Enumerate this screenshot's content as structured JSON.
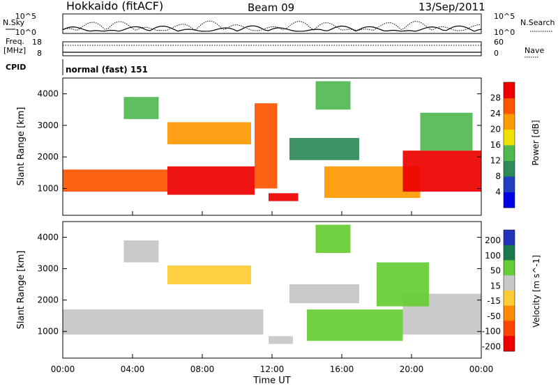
{
  "header": {
    "station": "Hokkaido (fitACF)",
    "beam": "Beam 09",
    "date": "13/Sep/2011"
  },
  "noise_panel": {
    "left_label": "N.Sky",
    "right_label": "N.Search",
    "y_top_label": "10^5",
    "y_bottom_label": "10^0",
    "right_top_label": "10^5",
    "right_bottom_label": "10^0"
  },
  "freq_panel": {
    "left_label_1": "Freq.",
    "left_label_2": "[MHz]",
    "left_ticks": [
      "18",
      "8"
    ],
    "right_ticks": [
      "60",
      "0"
    ],
    "right_label": "Nave"
  },
  "cpid_panel": {
    "label": "CPID",
    "value": "normal (fast) 151"
  },
  "colors": {
    "power_scale": [
      "#0000e6",
      "#1f3fbf",
      "#2e8b57",
      "#4fb84f",
      "#f0e000",
      "#ff9900",
      "#ff5500",
      "#ee0000"
    ],
    "velocity_scale": [
      "#2233bb",
      "#1a7a4a",
      "#66cc33",
      "#c8c8c8",
      "#ffcc33",
      "#ff8800",
      "#ff4400",
      "#ee0000"
    ],
    "ground_scatter": "#c4c4c4"
  },
  "chart_data": [
    {
      "type": "heatmap",
      "title": "Power",
      "ylabel": "Slant Range [km]",
      "yticks": [
        "1000",
        "2000",
        "3000",
        "4000"
      ],
      "ylim": [
        150,
        4500
      ],
      "xlim": [
        0,
        24
      ],
      "xticks": [
        "00:00",
        "04:00",
        "08:00",
        "12:00",
        "16:00",
        "20:00",
        "00:00"
      ],
      "colorbar": {
        "label": "Power [dB]",
        "ticks": [
          "4",
          "8",
          "12",
          "16",
          "20",
          "24",
          "28"
        ],
        "range": [
          0,
          32
        ]
      },
      "regions": [
        {
          "t0": 0.0,
          "t1": 6.0,
          "r0": 900,
          "r1": 1600,
          "level": 26
        },
        {
          "t0": 6.0,
          "t1": 11.0,
          "r0": 800,
          "r1": 1700,
          "level": 28
        },
        {
          "t0": 11.0,
          "t1": 12.3,
          "r0": 1000,
          "r1": 3700,
          "level": 27
        },
        {
          "t0": 6.0,
          "t1": 10.8,
          "r0": 2400,
          "r1": 3100,
          "level": 20
        },
        {
          "t0": 3.5,
          "t1": 5.5,
          "r0": 3200,
          "r1": 3900,
          "level": 14
        },
        {
          "t0": 15.0,
          "t1": 20.5,
          "r0": 700,
          "r1": 1700,
          "level": 22
        },
        {
          "t0": 13.0,
          "t1": 17.0,
          "r0": 1900,
          "r1": 2600,
          "level": 10
        },
        {
          "t0": 19.5,
          "t1": 24.0,
          "r0": 900,
          "r1": 2200,
          "level": 28
        },
        {
          "t0": 20.5,
          "t1": 23.5,
          "r0": 2200,
          "r1": 3400,
          "level": 12
        },
        {
          "t0": 14.5,
          "t1": 16.5,
          "r0": 3500,
          "r1": 4400,
          "level": 13
        },
        {
          "t0": 11.8,
          "t1": 13.5,
          "r0": 600,
          "r1": 850,
          "level": 29
        }
      ]
    },
    {
      "type": "heatmap",
      "title": "Velocity",
      "ylabel": "Slant Range [km]",
      "yticks": [
        "1000",
        "2000",
        "3000",
        "4000"
      ],
      "ylim": [
        150,
        4500
      ],
      "xlim": [
        0,
        24
      ],
      "xticks": [
        "00:00",
        "04:00",
        "08:00",
        "12:00",
        "16:00",
        "20:00",
        "00:00"
      ],
      "xlabel": "Time UT",
      "colorbar": {
        "label": "Velocity [m s^-1]",
        "ticks": [
          "200",
          "100",
          "50",
          "15",
          "-15",
          "-50",
          "-100",
          "-200"
        ]
      },
      "regions": [
        {
          "t0": 0.0,
          "t1": 11.5,
          "r0": 900,
          "r1": 1700,
          "value": 0,
          "ground_scatter": true
        },
        {
          "t0": 6.0,
          "t1": 10.8,
          "r0": 2500,
          "r1": 3100,
          "value": -30
        },
        {
          "t0": 3.5,
          "t1": 5.5,
          "r0": 3200,
          "r1": 3900,
          "value": 0,
          "ground_scatter": true
        },
        {
          "t0": 14.0,
          "t1": 19.5,
          "r0": 700,
          "r1": 1700,
          "value": 40
        },
        {
          "t0": 13.0,
          "t1": 17.0,
          "r0": 1900,
          "r1": 2500,
          "value": 0,
          "ground_scatter": true
        },
        {
          "t0": 19.5,
          "t1": 24.0,
          "r0": 900,
          "r1": 2200,
          "value": 0,
          "ground_scatter": true
        },
        {
          "t0": 18.0,
          "t1": 21.0,
          "r0": 1800,
          "r1": 3200,
          "value": 45
        },
        {
          "t0": 14.5,
          "t1": 16.5,
          "r0": 3500,
          "r1": 4400,
          "value": 30
        },
        {
          "t0": 11.8,
          "t1": 13.2,
          "r0": 600,
          "r1": 850,
          "value": 10
        }
      ]
    }
  ]
}
